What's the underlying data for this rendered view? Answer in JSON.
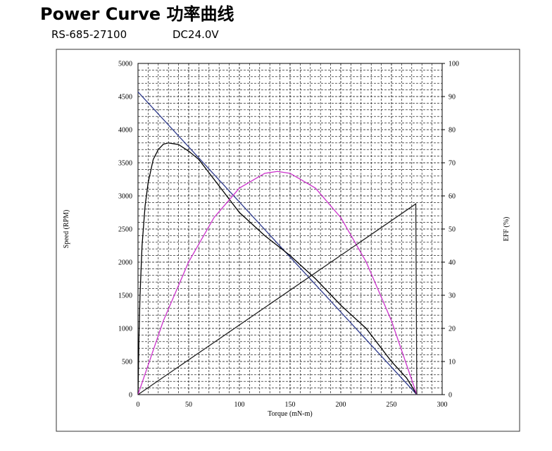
{
  "title": "Power Curve 功率曲线",
  "model": "RS-685-27100",
  "voltage": "DC24.0V",
  "chart_data": {
    "type": "line",
    "xlabel": "Torque (mN-m)",
    "ylabel": "Speed (RPM)",
    "y2label": "EFF (%)",
    "xlim": [
      0,
      300
    ],
    "xticks": [
      0,
      50,
      100,
      150,
      200,
      250,
      300
    ],
    "ylim": [
      0,
      5000
    ],
    "yticks": [
      0,
      500,
      1000,
      1500,
      2000,
      2500,
      3000,
      3500,
      4000,
      4500,
      5000
    ],
    "y2lim": [
      0,
      100
    ],
    "y2ticks": [
      0,
      10,
      20,
      30,
      40,
      50,
      60,
      70,
      80,
      90,
      100
    ],
    "grid": true,
    "series": [
      {
        "color": "#2e3a8c",
        "x": [
          0,
          275
        ],
        "values": [
          4570,
          0
        ]
      },
      {
        "color": "#000000",
        "axis": "y2",
        "x": [
          0,
          1,
          2,
          4,
          7,
          10,
          15,
          20,
          25,
          30,
          40,
          50,
          60,
          80,
          100,
          125,
          150,
          175,
          200,
          225,
          250,
          265,
          275
        ],
        "values": [
          0,
          18,
          30,
          45,
          57,
          64,
          71,
          74,
          75.6,
          76,
          75.5,
          73.5,
          71,
          63,
          55,
          48,
          42,
          35,
          27,
          20,
          10,
          5,
          0
        ]
      },
      {
        "color": "#cc33cc",
        "x": [
          0,
          25,
          50,
          75,
          100,
          125,
          137.5,
          150,
          175,
          200,
          225,
          250,
          275
        ],
        "values": [
          0,
          1114,
          2005,
          2673,
          3118,
          3341,
          3370,
          3341,
          3118,
          2673,
          2005,
          1114,
          0
        ]
      },
      {
        "color": "#222222",
        "x": [
          0,
          274,
          275
        ],
        "values": [
          0,
          2880,
          0
        ]
      }
    ]
  }
}
